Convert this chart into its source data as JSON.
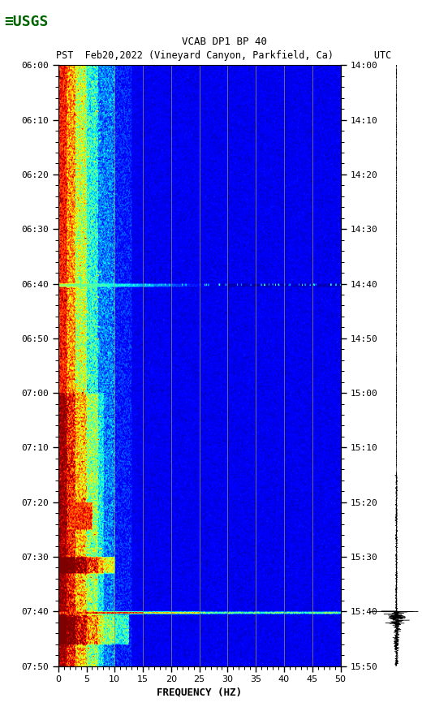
{
  "title_line1": "VCAB DP1 BP 40",
  "title_line2": "PST  Feb20,2022 (Vineyard Canyon, Parkfield, Ca)       UTC",
  "xlabel": "FREQUENCY (HZ)",
  "freq_min": 0,
  "freq_max": 50,
  "y_tick_interval_minutes": 10,
  "x_tick_major": 5,
  "x_tick_minor": 1,
  "vertical_lines_freq": [
    10,
    15,
    20,
    25,
    30,
    35,
    40,
    45
  ],
  "eq_time_minutes": 100,
  "cyan_band_minutes": 40,
  "background_color": "#ffffff",
  "colormap": "jet",
  "fig_width": 5.52,
  "fig_height": 8.92,
  "pst_labels": [
    "06:00",
    "06:10",
    "06:20",
    "06:30",
    "06:40",
    "06:50",
    "07:00",
    "07:10",
    "07:20",
    "07:30",
    "07:40",
    "07:50"
  ],
  "utc_labels": [
    "14:00",
    "14:10",
    "14:20",
    "14:30",
    "14:40",
    "14:50",
    "15:00",
    "15:10",
    "15:20",
    "15:30",
    "15:40",
    "15:50"
  ]
}
